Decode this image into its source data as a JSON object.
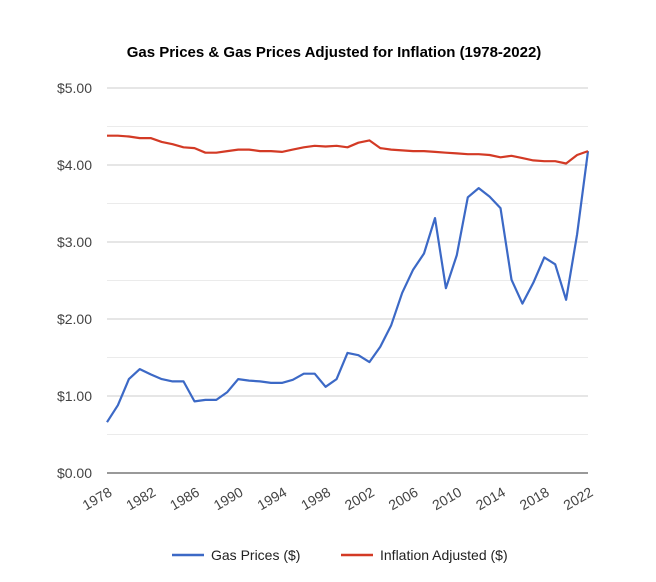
{
  "chart_data": {
    "type": "line",
    "title": "Gas Prices & Gas Prices Adjusted for Inflation (1978-2022)",
    "xlabel": "",
    "ylabel": "",
    "xlim": [
      1978,
      2022
    ],
    "ylim": [
      0,
      5
    ],
    "y_ticks": [
      0,
      1,
      2,
      3,
      4,
      5
    ],
    "y_tick_labels": [
      "$0.00",
      "$1.00",
      "$2.00",
      "$3.00",
      "$4.00",
      "$5.00"
    ],
    "x_ticks": [
      1978,
      1982,
      1986,
      1990,
      1994,
      1998,
      2002,
      2006,
      2010,
      2014,
      2018,
      2022
    ],
    "x_tick_labels": [
      "1978",
      "1982",
      "1986",
      "1990",
      "1994",
      "1998",
      "2002",
      "2006",
      "2010",
      "2014",
      "2018",
      "2022"
    ],
    "grid": true,
    "legend_position": "bottom",
    "x": [
      1978,
      1979,
      1980,
      1981,
      1982,
      1983,
      1984,
      1985,
      1986,
      1987,
      1988,
      1989,
      1990,
      1991,
      1992,
      1993,
      1994,
      1995,
      1996,
      1997,
      1998,
      1999,
      2000,
      2001,
      2002,
      2003,
      2004,
      2005,
      2006,
      2007,
      2008,
      2009,
      2010,
      2011,
      2012,
      2013,
      2014,
      2015,
      2016,
      2017,
      2018,
      2019,
      2020,
      2021,
      2022
    ],
    "series": [
      {
        "name": "Gas Prices ($)",
        "color": "#3c69c6",
        "values": [
          0.66,
          0.88,
          1.22,
          1.35,
          1.28,
          1.22,
          1.19,
          1.19,
          0.93,
          0.95,
          0.95,
          1.05,
          1.22,
          1.2,
          1.19,
          1.17,
          1.17,
          1.21,
          1.29,
          1.29,
          1.12,
          1.22,
          1.56,
          1.53,
          1.44,
          1.64,
          1.92,
          2.34,
          2.64,
          2.85,
          3.31,
          2.4,
          2.83,
          3.58,
          3.7,
          3.59,
          3.44,
          2.51,
          2.2,
          2.47,
          2.8,
          2.71,
          2.25,
          3.1,
          4.18
        ]
      },
      {
        "name": "Inflation Adjusted ($)",
        "color": "#d33a25",
        "values": [
          4.38,
          4.38,
          4.37,
          4.35,
          4.35,
          4.3,
          4.27,
          4.23,
          4.22,
          4.16,
          4.16,
          4.18,
          4.2,
          4.2,
          4.18,
          4.18,
          4.17,
          4.2,
          4.23,
          4.25,
          4.24,
          4.25,
          4.23,
          4.29,
          4.32,
          4.22,
          4.2,
          4.19,
          4.18,
          4.18,
          4.17,
          4.16,
          4.15,
          4.14,
          4.14,
          4.13,
          4.1,
          4.12,
          4.09,
          4.06,
          4.05,
          4.05,
          4.02,
          4.13,
          4.18
        ]
      }
    ]
  }
}
